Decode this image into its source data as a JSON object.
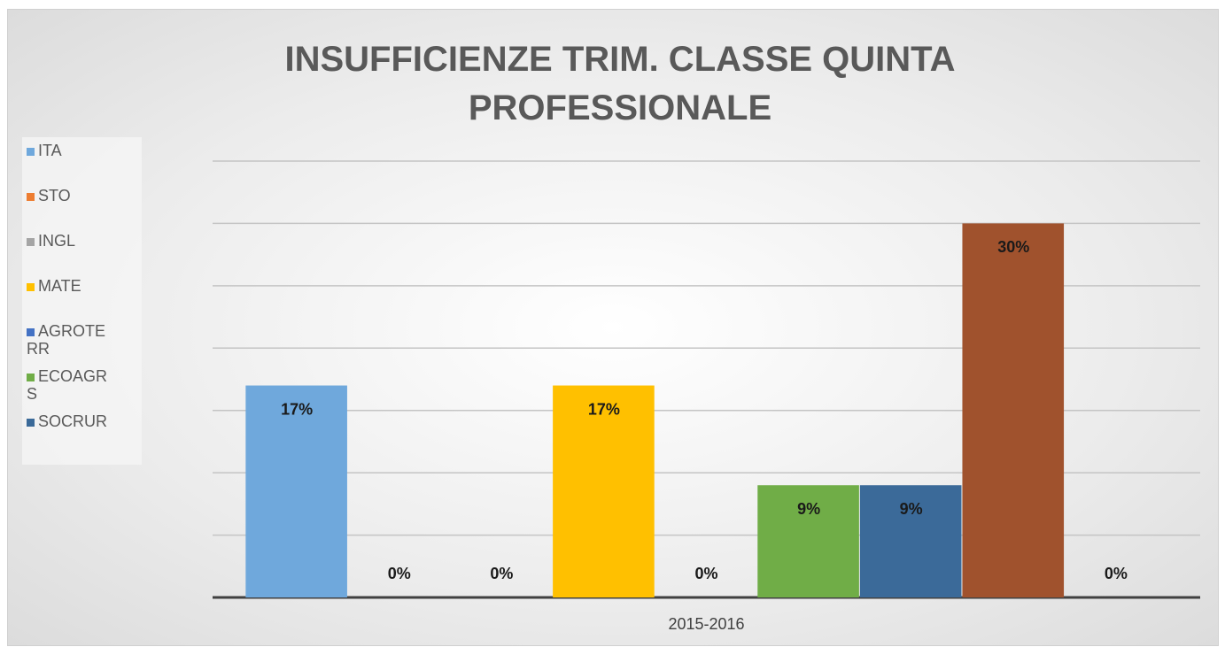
{
  "chart_data": {
    "type": "bar",
    "title": "INSUFFICIENZE TRIM. CLASSE QUINTA PROFESSIONALE",
    "categories": [
      "2015-2016"
    ],
    "series": [
      {
        "name": "ITA",
        "color": "#6fa8dc",
        "values": [
          17
        ],
        "value_labels": [
          "17%"
        ]
      },
      {
        "name": "STO",
        "color": "#ed7d31",
        "values": [
          0
        ],
        "value_labels": [
          "0%"
        ]
      },
      {
        "name": "INGL",
        "color": "#a5a5a5",
        "values": [
          0
        ],
        "value_labels": [
          "0%"
        ]
      },
      {
        "name": "MATE",
        "color": "#ffc000",
        "values": [
          17
        ],
        "value_labels": [
          "17%"
        ]
      },
      {
        "name": "AGROTERR",
        "color": "#4472c4",
        "values": [
          0
        ],
        "value_labels": [
          "0%"
        ]
      },
      {
        "name": "ECOAGRS",
        "color": "#70ad47",
        "values": [
          9
        ],
        "value_labels": [
          "9%"
        ]
      },
      {
        "name": "SOCRUR",
        "color": "#3b6a99",
        "values": [
          9
        ],
        "value_labels": [
          "9%"
        ]
      },
      {
        "name": null,
        "color": "#a0522d",
        "values": [
          30
        ],
        "value_labels": [
          "30%"
        ]
      },
      {
        "name": null,
        "color": "#636363",
        "values": [
          0
        ],
        "value_labels": [
          "0%"
        ]
      }
    ],
    "ylim": [
      0,
      35
    ],
    "yticks": [
      0,
      5,
      10,
      15,
      20,
      25,
      30,
      35
    ],
    "grid": true,
    "legend": "left"
  }
}
